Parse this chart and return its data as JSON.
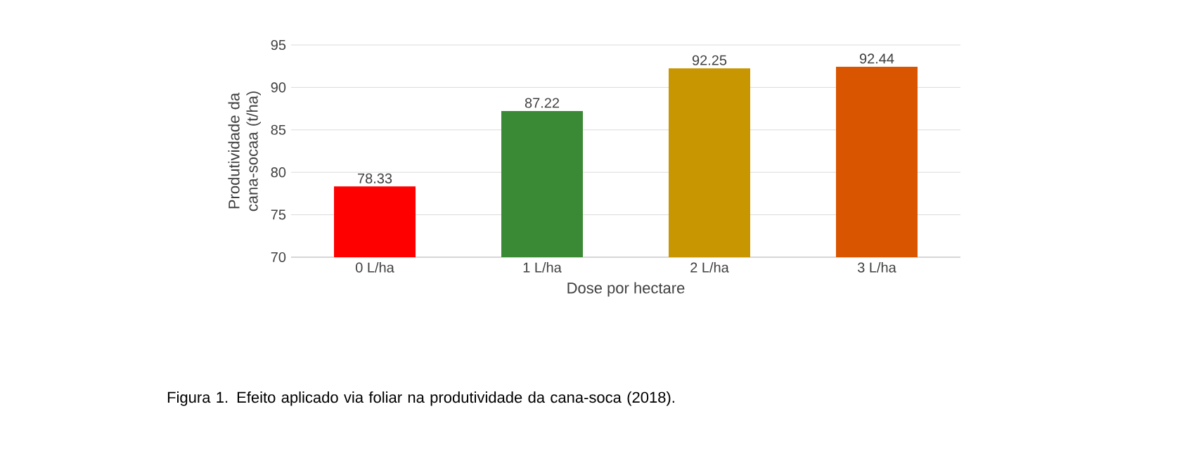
{
  "chart_data": {
    "type": "bar",
    "xlabel": "Dose por hectare",
    "ylabel": "Produtividade da cana-socaa (t/ha)",
    "categories": [
      "0 L/ha",
      "1 L/ha",
      "2 L/ha",
      "3 L/ha"
    ],
    "values": [
      78.33,
      87.22,
      92.25,
      92.44
    ],
    "colors": [
      "#ff0000",
      "#3a8a35",
      "#c89600",
      "#d95500"
    ],
    "ylim": [
      70,
      95
    ],
    "yticks": [
      70,
      75,
      80,
      85,
      90,
      95
    ],
    "grid": "y",
    "data_labels": true,
    "annotations": [
      "Figura 1. Efeito aplicado via foliar na produtividade da cana-soca (2018)."
    ]
  }
}
